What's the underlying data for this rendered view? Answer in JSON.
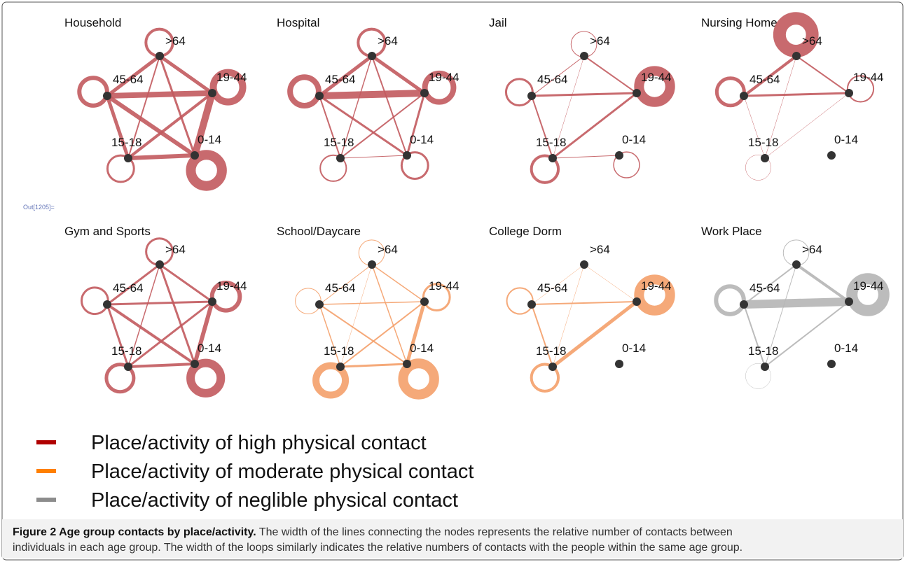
{
  "out_label": "Out[1205]=",
  "panels": [
    {
      "title": "Household",
      "color": "#c25a5e",
      "nodes": [
        ">64",
        "19-44",
        "0-14",
        "15-18",
        "45-64"
      ],
      "loops": [
        4,
        10,
        14,
        3,
        6
      ],
      "edges": [
        [
          0,
          1,
          5
        ],
        [
          0,
          2,
          3
        ],
        [
          0,
          3,
          2
        ],
        [
          0,
          4,
          5
        ],
        [
          1,
          2,
          10
        ],
        [
          1,
          3,
          4
        ],
        [
          1,
          4,
          8
        ],
        [
          2,
          3,
          6
        ],
        [
          2,
          4,
          6
        ],
        [
          3,
          4,
          5
        ]
      ]
    },
    {
      "title": "Hospital",
      "color": "#c25a5e",
      "nodes": [
        ">64",
        "19-44",
        "0-14",
        "15-18",
        "45-64"
      ],
      "loops": [
        4,
        8,
        3,
        2,
        8
      ],
      "edges": [
        [
          0,
          1,
          5
        ],
        [
          0,
          2,
          2
        ],
        [
          0,
          3,
          1.5
        ],
        [
          0,
          4,
          5
        ],
        [
          1,
          2,
          3
        ],
        [
          1,
          3,
          2
        ],
        [
          1,
          4,
          10
        ],
        [
          2,
          3,
          1
        ],
        [
          2,
          4,
          3
        ],
        [
          3,
          4,
          2
        ]
      ]
    },
    {
      "title": "Jail",
      "color": "#c25a5e",
      "nodes": [
        ">64",
        "19-44",
        "0-14",
        "15-18",
        "45-64"
      ],
      "loops": [
        1,
        14,
        1.5,
        4,
        3
      ],
      "edges": [
        [
          0,
          1,
          2
        ],
        [
          0,
          4,
          1
        ],
        [
          0,
          3,
          0.5
        ],
        [
          1,
          4,
          3
        ],
        [
          1,
          3,
          3
        ],
        [
          3,
          4,
          2
        ],
        [
          2,
          3,
          1
        ]
      ]
    },
    {
      "title": "Nursing Home",
      "color": "#c25a5e",
      "nodes": [
        ">64",
        "19-44",
        "0-14",
        "15-18",
        "45-64"
      ],
      "loops": [
        18,
        2,
        null,
        0.5,
        5
      ],
      "edges": [
        [
          0,
          4,
          4
        ],
        [
          0,
          1,
          2
        ],
        [
          1,
          4,
          3
        ],
        [
          0,
          3,
          0.5
        ],
        [
          3,
          4,
          0.5
        ],
        [
          1,
          3,
          0.5
        ]
      ]
    },
    {
      "title": "Gym and Sports",
      "color": "#c25a5e",
      "nodes": [
        ">64",
        "19-44",
        "0-14",
        "15-18",
        "45-64"
      ],
      "loops": [
        3,
        6,
        12,
        5,
        3
      ],
      "edges": [
        [
          0,
          1,
          3
        ],
        [
          0,
          2,
          3
        ],
        [
          0,
          3,
          1.5
        ],
        [
          0,
          4,
          3
        ],
        [
          1,
          2,
          6
        ],
        [
          1,
          3,
          3
        ],
        [
          1,
          4,
          3
        ],
        [
          2,
          3,
          4
        ],
        [
          2,
          4,
          4
        ],
        [
          3,
          4,
          3
        ]
      ]
    },
    {
      "title": "School/Daycare",
      "color": "#f4a06a",
      "nodes": [
        ">64",
        "19-44",
        "0-14",
        "15-18",
        "45-64"
      ],
      "loops": [
        1,
        3,
        14,
        10,
        1
      ],
      "edges": [
        [
          0,
          1,
          1.5
        ],
        [
          0,
          2,
          1.5
        ],
        [
          0,
          3,
          0.5
        ],
        [
          0,
          4,
          1
        ],
        [
          1,
          2,
          5
        ],
        [
          1,
          3,
          2
        ],
        [
          1,
          4,
          1.5
        ],
        [
          2,
          3,
          3
        ],
        [
          2,
          4,
          2
        ],
        [
          3,
          4,
          1.5
        ]
      ]
    },
    {
      "title": "College Dorm",
      "color": "#f4a06a",
      "nodes": [
        ">64",
        "19-44",
        "0-14",
        "15-18",
        "45-64"
      ],
      "loops": [
        null,
        14,
        null,
        4,
        2
      ],
      "edges": [
        [
          0,
          4,
          0.5
        ],
        [
          0,
          3,
          0.5
        ],
        [
          0,
          1,
          0.5
        ],
        [
          1,
          4,
          2
        ],
        [
          3,
          4,
          2
        ],
        [
          1,
          3,
          5
        ]
      ]
    },
    {
      "title": "Work Place",
      "color": "#b5b5b5",
      "nodes": [
        ">64",
        "19-44",
        "0-14",
        "15-18",
        "45-64"
      ],
      "loops": [
        1,
        16,
        null,
        0.5,
        6
      ],
      "edges": [
        [
          1,
          4,
          12
        ],
        [
          0,
          1,
          4
        ],
        [
          0,
          4,
          2
        ],
        [
          3,
          4,
          2
        ],
        [
          1,
          3,
          2
        ],
        [
          0,
          3,
          1
        ]
      ]
    }
  ],
  "legend": [
    {
      "label": "Place/activity of high physical contact",
      "color": "#b00000"
    },
    {
      "label": "Place/activity of moderate physical contact",
      "color": "#ff8000"
    },
    {
      "label": "Place/activity of neglible physical contact",
      "color": "#8c8c8c"
    }
  ],
  "caption": {
    "bold": "Figure 2 Age group contacts by place/activity.",
    "line1": "The width of the lines connecting the nodes represents the relative number of contacts between",
    "line2": "individuals in each age group. The width of the loops similarly indicates the relative numbers of contacts with the people within the same age group."
  }
}
